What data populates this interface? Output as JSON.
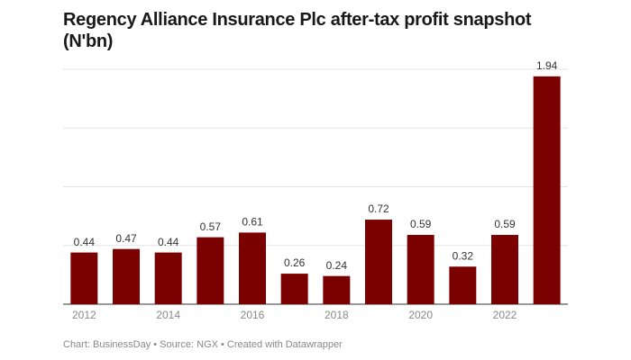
{
  "chart_data": {
    "type": "bar",
    "title": "Regency Alliance Insurance Plc after-tax profit snapshot (N'bn)",
    "categories": [
      "2012",
      null,
      "2014",
      null,
      "2016",
      null,
      "2018",
      null,
      "2020",
      null,
      "2022",
      null
    ],
    "values": [
      0.44,
      0.47,
      0.44,
      0.57,
      0.61,
      0.26,
      0.24,
      0.72,
      0.59,
      0.32,
      0.59,
      1.94
    ],
    "color": "#7b0000",
    "ylim": [
      0,
      2
    ],
    "yticks": [
      0,
      0.5,
      1,
      1.5,
      2
    ],
    "grid": true,
    "source": "Chart: BusinessDay • Source: NGX • Created with Datawrapper"
  }
}
